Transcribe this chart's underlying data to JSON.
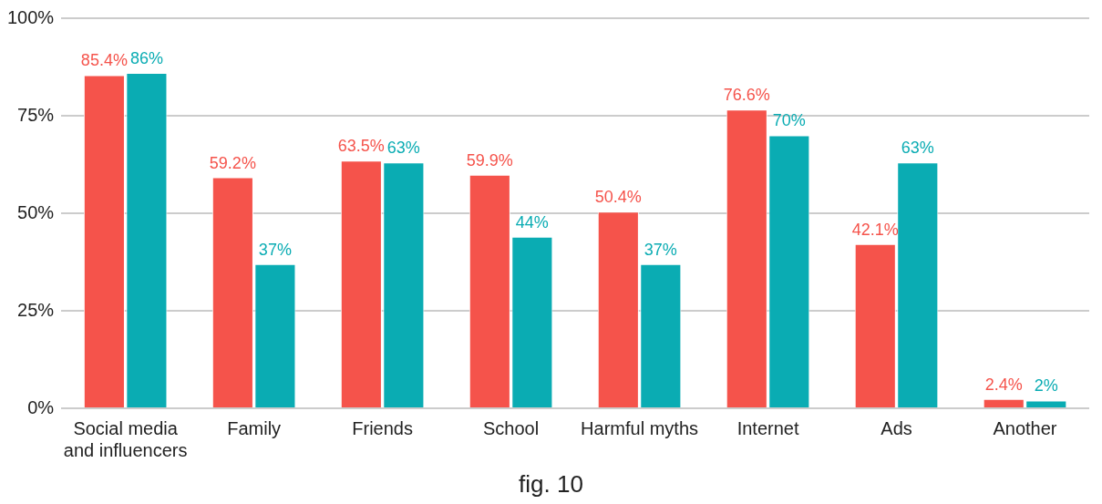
{
  "chart_data": {
    "type": "bar",
    "categories": [
      "Social media and influencers",
      "Family",
      "Friends",
      "School",
      "Harmful myths",
      "Internet",
      "Ads",
      "Another"
    ],
    "series": [
      {
        "color": "#f5534b",
        "values": [
          85.4,
          59.2,
          63.5,
          59.9,
          50.4,
          76.6,
          42.1,
          2.4
        ],
        "value_labels": [
          "85.4%",
          "59.2%",
          "63.5%",
          "59.9%",
          "50.4%",
          "76.6%",
          "42.1%",
          "2.4%"
        ]
      },
      {
        "color": "#0aacb3",
        "values": [
          86,
          37,
          63,
          44,
          37,
          70,
          63,
          2
        ],
        "value_labels": [
          "86%",
          "37%",
          "63%",
          "44%",
          "37%",
          "70%",
          "63%",
          "2%"
        ]
      }
    ],
    "ylim": [
      0,
      100
    ],
    "yticks": [
      {
        "value": 0,
        "label": "0%"
      },
      {
        "value": 25,
        "label": "25%"
      },
      {
        "value": 50,
        "label": "50%"
      },
      {
        "value": 75,
        "label": "75%"
      },
      {
        "value": 100,
        "label": "100%"
      }
    ],
    "grid": "y",
    "legend": false,
    "annotations": [
      "fig. 10"
    ]
  }
}
